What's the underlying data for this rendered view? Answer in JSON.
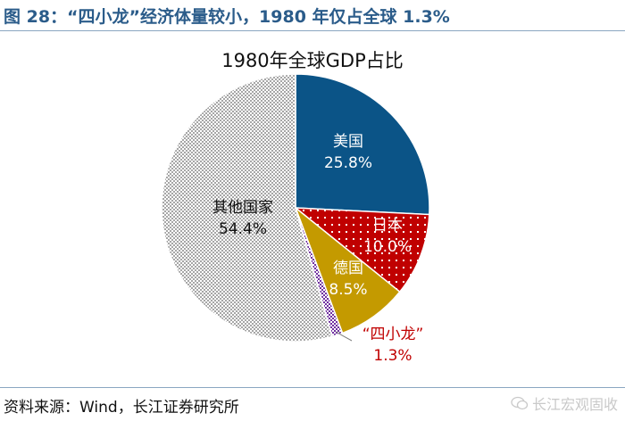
{
  "figure": {
    "title": "图 28：“四小龙”经济体量较小，1980 年仅占全球 1.3%",
    "source": "资料来源：Wind，长江证券研究所",
    "watermark": "长江宏观固收",
    "watermark_icon": "wechat-icon"
  },
  "chart_data": {
    "type": "pie",
    "title": "1980年全球GDP占比",
    "start_angle_deg": 0,
    "direction": "clockwise",
    "slices": [
      {
        "name": "美国",
        "value": 25.8,
        "label": "25.8%",
        "color": "#0b5487",
        "pattern": "solid",
        "label_color": "#ffffff"
      },
      {
        "name": "日本",
        "value": 10.0,
        "label": "10.0%",
        "color": "#c00000",
        "pattern": "dots",
        "label_color": "#ffffff"
      },
      {
        "name": "德国",
        "value": 8.5,
        "label": "8.5%",
        "color": "#c49a00",
        "pattern": "solid",
        "label_color": "#ffffff"
      },
      {
        "name": "“四小龙”",
        "value": 1.3,
        "label": "1.3%",
        "color": "#7030a0",
        "pattern": "checker",
        "label_color": "#c00000",
        "label_outside": true
      },
      {
        "name": "其他国家",
        "value": 54.4,
        "label": "54.4%",
        "color": "#bfbfbf",
        "pattern": "fine-checker",
        "label_color": "#111111"
      }
    ]
  }
}
